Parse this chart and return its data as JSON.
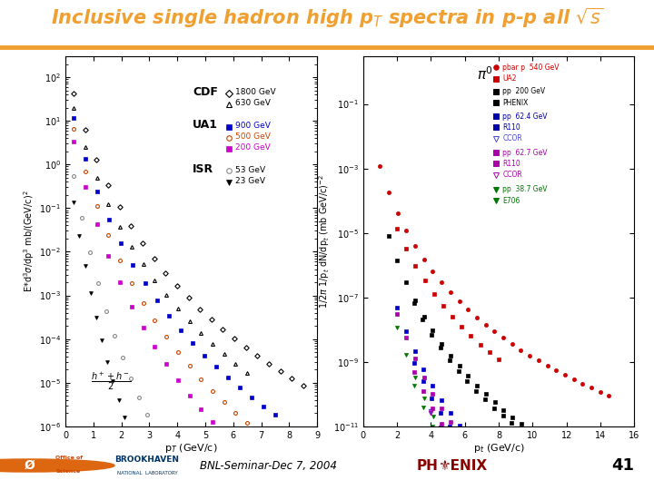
{
  "title": "Inclusive single hadron high p$_T$ spectra in p-p all $\\sqrt{s}$",
  "title_color": "#F0A030",
  "header_bar_color": "#F0A030",
  "footer_text": "BNL-Seminar-Dec 7, 2004",
  "slide_number": "41",
  "left_plot": {
    "ylabel": "E*d$^3\\sigma$/dp$^3$ mb/(GeV/c)$^2$",
    "xlabel": "p$_T$ (GeV/c)",
    "xlim": [
      0,
      9
    ],
    "ylim": [
      1e-06,
      300.0
    ]
  },
  "right_plot": {
    "ylabel": "1/2$\\pi$ 1/p$_t$ dN/dp$_t$ (mb GeV/c)$^{-2}$",
    "xlabel": "p$_t$ (GeV/c)",
    "xlim": [
      0,
      16
    ],
    "ylim": [
      1e-11,
      3.0
    ]
  }
}
